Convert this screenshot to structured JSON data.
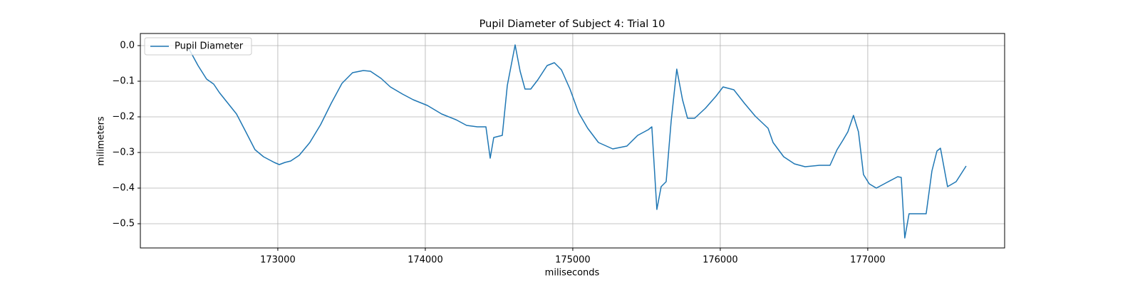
{
  "chart_data": {
    "type": "line",
    "title": "Pupil Diameter of Subject 4: Trial 10",
    "x_label": "miliseconds",
    "y_label": "milimeters",
    "legend": "upper left",
    "grid": true,
    "xlim": [
      172068,
      177928
    ],
    "ylim": [
      -0.568,
      0.034
    ],
    "xticks": [
      173000,
      174000,
      175000,
      176000,
      177000
    ],
    "yticks": [
      {
        "value": 0,
        "label": "0.0"
      },
      {
        "value": -0.1,
        "label": "−0.1"
      },
      {
        "value": -0.2,
        "label": "−0.2"
      },
      {
        "value": -0.3,
        "label": "−0.3"
      },
      {
        "value": -0.4,
        "label": "−0.4"
      },
      {
        "value": -0.5,
        "label": "−0.5"
      }
    ],
    "x": [
      172396,
      172459,
      172517,
      172565,
      172604,
      172662,
      172720,
      172783,
      172845,
      172903,
      172976,
      173010,
      173048,
      173087,
      173145,
      173217,
      173290,
      173362,
      173435,
      173507,
      173580,
      173628,
      173700,
      173763,
      173845,
      173918,
      174014,
      174111,
      174208,
      174280,
      174353,
      174411,
      174440,
      174464,
      174522,
      174556,
      174609,
      174643,
      174676,
      174715,
      174763,
      174826,
      174875,
      174923,
      174981,
      175039,
      175101,
      175174,
      175271,
      175367,
      175440,
      175512,
      175536,
      175570,
      175599,
      175633,
      175667,
      175705,
      175744,
      175778,
      175826,
      175899,
      175971,
      176019,
      176092,
      176164,
      176237,
      176324,
      176358,
      176430,
      176503,
      176575,
      176672,
      176744,
      176792,
      176831,
      176865,
      176903,
      176937,
      176971,
      177010,
      177058,
      177130,
      177203,
      177227,
      177251,
      177280,
      177396,
      177435,
      177469,
      177493,
      177541,
      177599,
      177667
    ],
    "series": [
      {
        "name": "Pupil Diameter",
        "color": "#1f77b4",
        "values": [
          -0.008,
          -0.056,
          -0.094,
          -0.108,
          -0.132,
          -0.162,
          -0.192,
          -0.242,
          -0.292,
          -0.312,
          -0.328,
          -0.334,
          -0.328,
          -0.324,
          -0.308,
          -0.272,
          -0.222,
          -0.162,
          -0.106,
          -0.076,
          -0.07,
          -0.072,
          -0.092,
          -0.116,
          -0.136,
          -0.152,
          -0.168,
          -0.192,
          -0.208,
          -0.224,
          -0.228,
          -0.228,
          -0.316,
          -0.258,
          -0.252,
          -0.112,
          0.002,
          -0.072,
          -0.122,
          -0.122,
          -0.096,
          -0.056,
          -0.048,
          -0.068,
          -0.122,
          -0.188,
          -0.232,
          -0.272,
          -0.29,
          -0.282,
          -0.252,
          -0.236,
          -0.228,
          -0.46,
          -0.396,
          -0.382,
          -0.212,
          -0.066,
          -0.152,
          -0.204,
          -0.204,
          -0.176,
          -0.142,
          -0.116,
          -0.124,
          -0.162,
          -0.198,
          -0.232,
          -0.272,
          -0.312,
          -0.332,
          -0.34,
          -0.336,
          -0.336,
          -0.292,
          -0.266,
          -0.242,
          -0.196,
          -0.242,
          -0.362,
          -0.388,
          -0.4,
          -0.384,
          -0.368,
          -0.37,
          -0.54,
          -0.472,
          -0.472,
          -0.352,
          -0.296,
          -0.288,
          -0.396,
          -0.382,
          -0.338
        ]
      }
    ]
  }
}
